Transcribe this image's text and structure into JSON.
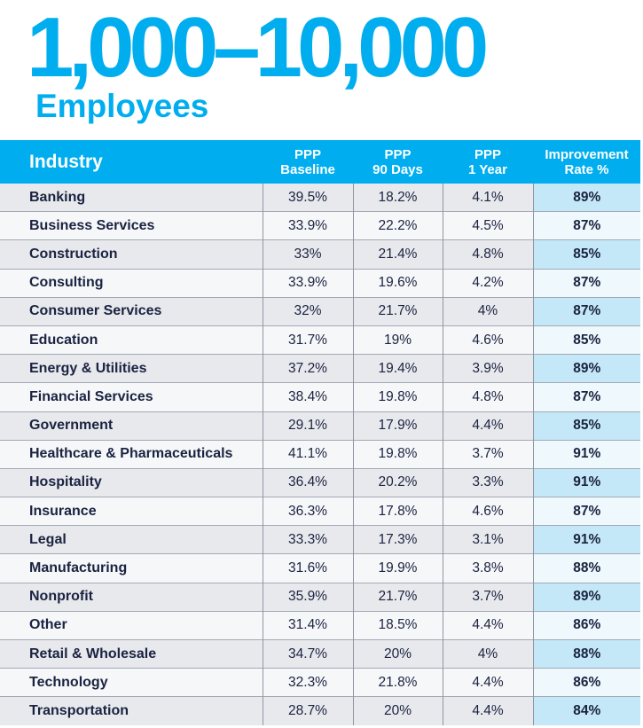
{
  "title": "1,000–10,000",
  "subtitle": "Employees",
  "colors": {
    "accent": "#00aeef",
    "text": "#1a2340",
    "highlight": "#c5e8f8"
  },
  "table": {
    "headers": [
      {
        "line1": "Industry",
        "line2": ""
      },
      {
        "line1": "PPP",
        "line2": "Baseline"
      },
      {
        "line1": "PPP",
        "line2": "90 Days"
      },
      {
        "line1": "PPP",
        "line2": "1 Year"
      },
      {
        "line1": "Improvement",
        "line2": "Rate %"
      }
    ],
    "rows": [
      [
        "Banking",
        "39.5%",
        "18.2%",
        "4.1%",
        "89%"
      ],
      [
        "Business Services",
        "33.9%",
        "22.2%",
        "4.5%",
        "87%"
      ],
      [
        "Construction",
        "33%",
        "21.4%",
        "4.8%",
        "85%"
      ],
      [
        "Consulting",
        "33.9%",
        "19.6%",
        "4.2%",
        "87%"
      ],
      [
        "Consumer Services",
        "32%",
        "21.7%",
        "4%",
        "87%"
      ],
      [
        "Education",
        "31.7%",
        "19%",
        "4.6%",
        "85%"
      ],
      [
        "Energy & Utilities",
        "37.2%",
        "19.4%",
        "3.9%",
        "89%"
      ],
      [
        "Financial Services",
        "38.4%",
        "19.8%",
        "4.8%",
        "87%"
      ],
      [
        "Government",
        "29.1%",
        "17.9%",
        "4.4%",
        "85%"
      ],
      [
        "Healthcare & Pharmaceuticals",
        "41.1%",
        "19.8%",
        "3.7%",
        "91%"
      ],
      [
        "Hospitality",
        "36.4%",
        "20.2%",
        "3.3%",
        "91%"
      ],
      [
        "Insurance",
        "36.3%",
        "17.8%",
        "4.6%",
        "87%"
      ],
      [
        "Legal",
        "33.3%",
        "17.3%",
        "3.1%",
        "91%"
      ],
      [
        "Manufacturing",
        "31.6%",
        "19.9%",
        "3.8%",
        "88%"
      ],
      [
        "Nonprofit",
        "35.9%",
        "21.7%",
        "3.7%",
        "89%"
      ],
      [
        "Other",
        "31.4%",
        "18.5%",
        "4.4%",
        "86%"
      ],
      [
        "Retail & Wholesale",
        "34.7%",
        "20%",
        "4%",
        "88%"
      ],
      [
        "Technology",
        "32.3%",
        "21.8%",
        "4.4%",
        "86%"
      ],
      [
        "Transportation",
        "28.7%",
        "20%",
        "4.4%",
        "84%"
      ]
    ]
  }
}
